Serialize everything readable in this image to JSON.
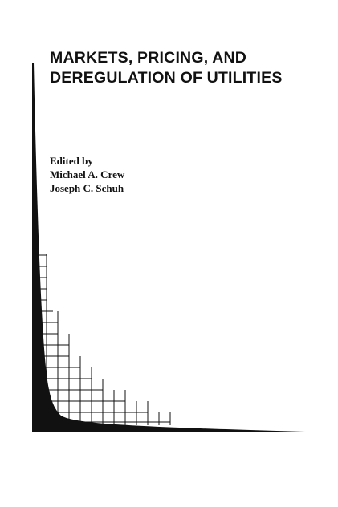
{
  "book": {
    "title_line_1": "MARKETS, PRICING, AND",
    "title_line_2": "DEREGULATION OF UTILITIES",
    "edited_by": "Edited by",
    "editor_1": "Michael A. Crew",
    "editor_2": "Joseph C. Schuh"
  },
  "colors": {
    "ink": "#111111",
    "background": "#ffffff"
  }
}
